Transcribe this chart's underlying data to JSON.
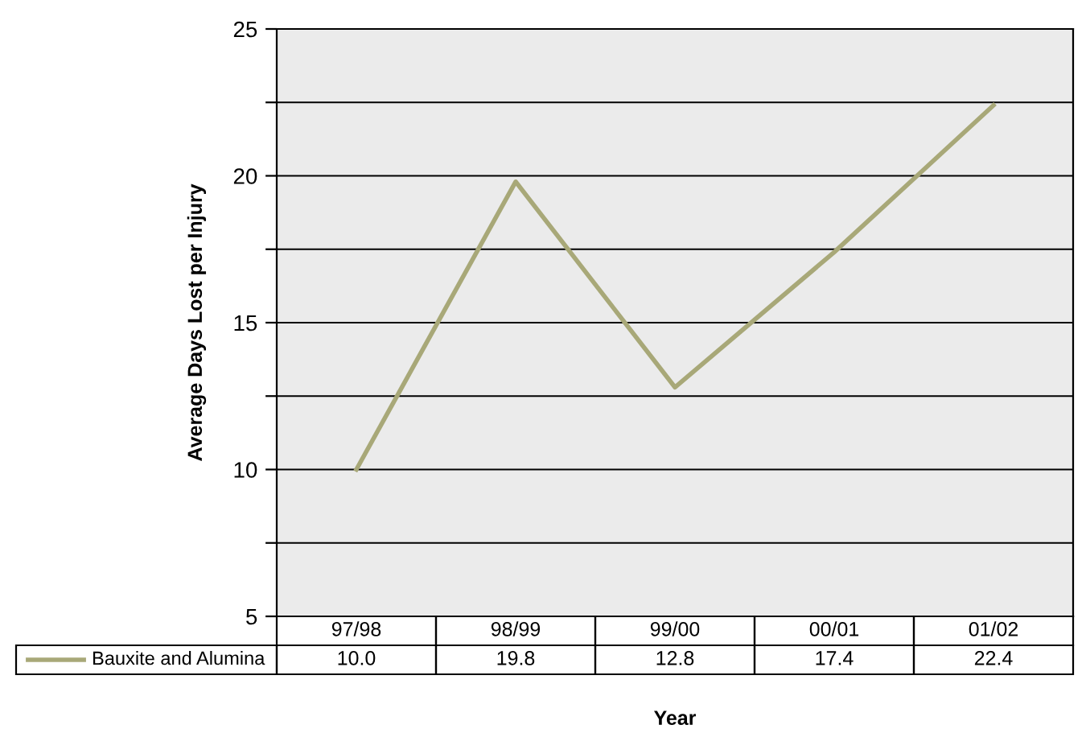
{
  "chart_data": {
    "type": "line",
    "xlabel": "Year",
    "ylabel": "Average Days Lost per Injury",
    "categories": [
      "97/98",
      "98/99",
      "99/00",
      "00/01",
      "01/02"
    ],
    "series": [
      {
        "name": "Bauxite and Alumina",
        "color": "#a8a878",
        "values": [
          10.0,
          19.8,
          12.8,
          17.4,
          22.4
        ]
      }
    ],
    "value_labels": [
      "10.0",
      "19.8",
      "12.8",
      "17.4",
      "22.4"
    ],
    "ylim": [
      5,
      25
    ],
    "yticks": [
      5,
      {
        "value": 7.5,
        "label": null
      },
      10,
      {
        "value": 12.5,
        "label": null
      },
      15,
      {
        "value": 17.5,
        "label": null
      },
      20,
      {
        "value": 22.5,
        "label": null
      },
      25
    ],
    "grid": "y",
    "legend": "bottom",
    "marker": "none",
    "line_style": "solid"
  }
}
